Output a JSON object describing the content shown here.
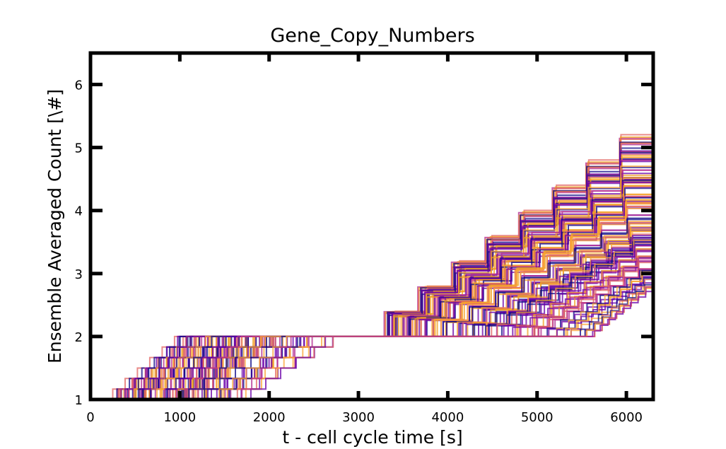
{
  "chart_data": {
    "type": "line",
    "title": "Gene_Copy_Numbers",
    "xlabel": "t - cell cycle time [s]",
    "ylabel": "Ensemble Averaged Count [\\#]",
    "xlim": [
      0,
      6300
    ],
    "ylim": [
      1,
      6.5
    ],
    "x_ticks": [
      0,
      1000,
      2000,
      3000,
      4000,
      5000,
      6000
    ],
    "y_ticks": [
      1,
      2,
      3,
      4,
      5,
      6
    ],
    "grid": false,
    "colormap": [
      "#0d0887",
      "#6a00a8",
      "#b12a90",
      "#e16462",
      "#fca636",
      "#f0a020"
    ],
    "series_description_note": "",
    "ensemble": {
      "n_traces": 120,
      "first_duplication_window": [
        100,
        2900
      ],
      "first_duplication_value_range": [
        1,
        2
      ],
      "plateau_value": 2,
      "second_duplication_window": [
        2900,
        6300
      ],
      "second_duplication_value_range": [
        2,
        5.4
      ]
    }
  }
}
